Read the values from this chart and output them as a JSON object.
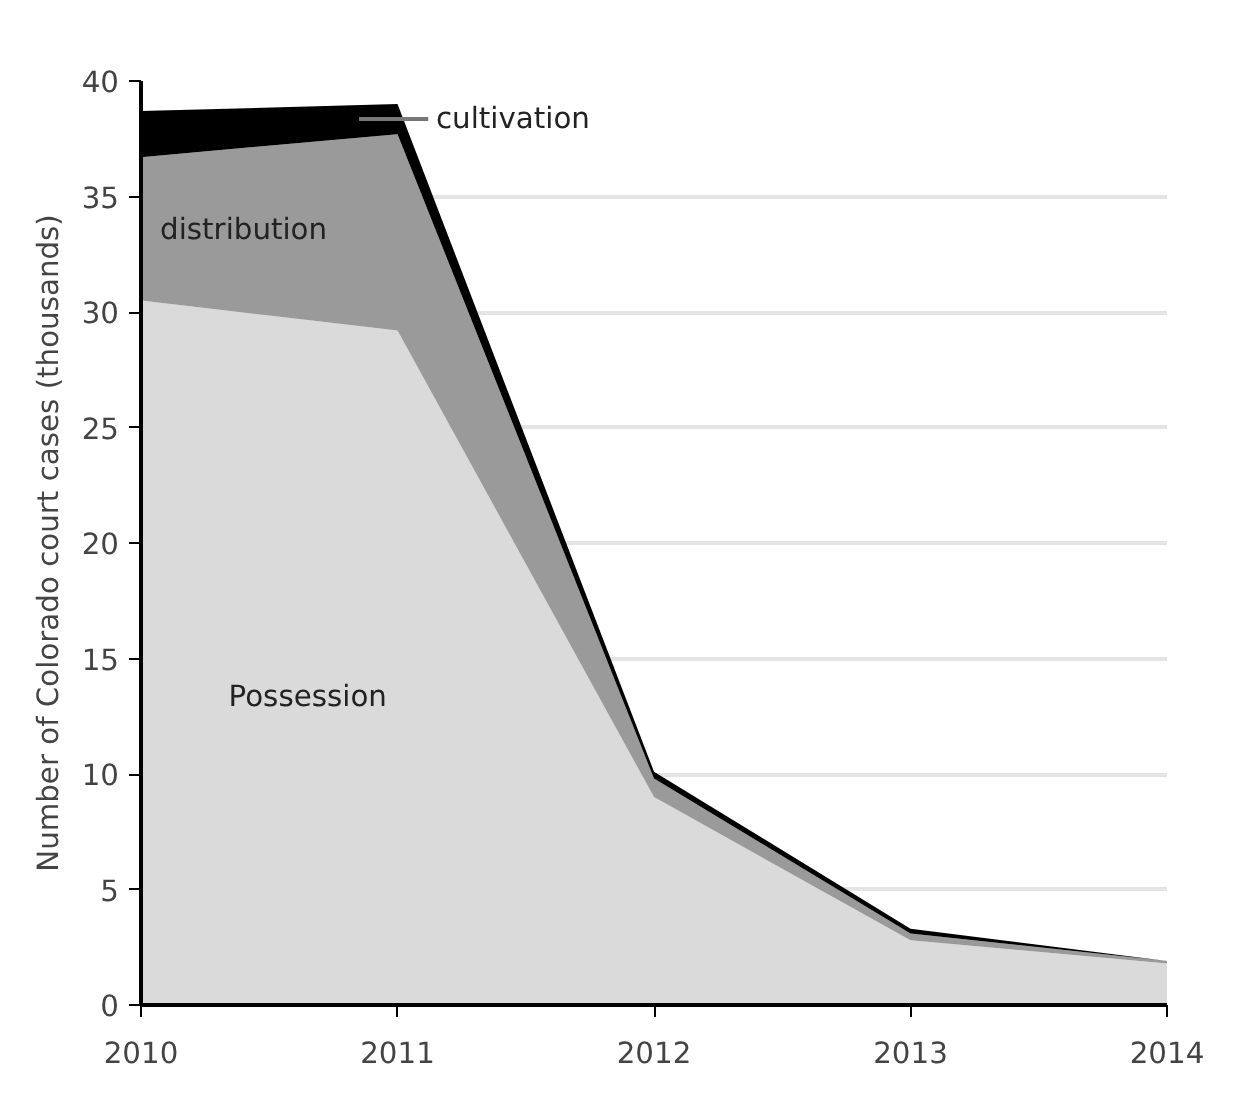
{
  "chart_data": {
    "type": "area",
    "stacked": true,
    "ylabel": "Number of Colorado court cases (thousands)",
    "x": [
      2010,
      2011,
      2012,
      2013,
      2014
    ],
    "xlim": [
      2010,
      2014
    ],
    "xticks": [
      2010,
      2011,
      2012,
      2013,
      2014
    ],
    "ylim": [
      0,
      40
    ],
    "yticks": [
      0,
      5,
      10,
      15,
      20,
      25,
      30,
      35,
      40
    ],
    "grid": "y",
    "series": [
      {
        "name": "Possession",
        "color": "#d9dad9",
        "values": [
          30.5,
          29.2,
          9.0,
          2.8,
          1.8
        ]
      },
      {
        "name": "distribution",
        "color": "#9a9a9a",
        "values": [
          6.2,
          8.5,
          0.8,
          0.3,
          0.1
        ]
      },
      {
        "name": "cultivation",
        "color": "#000000",
        "values": [
          2.0,
          1.3,
          0.3,
          0.2,
          0.0
        ]
      }
    ]
  }
}
